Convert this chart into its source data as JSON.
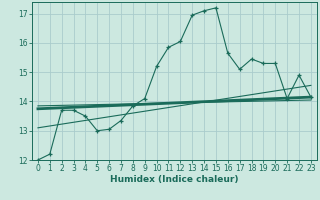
{
  "xlabel": "Humidex (Indice chaleur)",
  "background_color": "#cce8e0",
  "grid_color": "#aacccc",
  "line_color": "#1a6b5a",
  "xlim": [
    -0.5,
    23.5
  ],
  "ylim": [
    12,
    17.4
  ],
  "yticks": [
    12,
    13,
    14,
    15,
    16,
    17
  ],
  "xticks": [
    0,
    1,
    2,
    3,
    4,
    5,
    6,
    7,
    8,
    9,
    10,
    11,
    12,
    13,
    14,
    15,
    16,
    17,
    18,
    19,
    20,
    21,
    22,
    23
  ],
  "series1_x": [
    0,
    1,
    2,
    3,
    4,
    5,
    6,
    7,
    8,
    9,
    10,
    11,
    12,
    13,
    14,
    15,
    16,
    17,
    18,
    19,
    20,
    21,
    22,
    23
  ],
  "series1_y": [
    12.0,
    12.2,
    13.7,
    13.7,
    13.5,
    13.0,
    13.05,
    13.35,
    13.85,
    14.1,
    15.2,
    15.85,
    16.05,
    16.95,
    17.1,
    17.2,
    15.65,
    15.1,
    15.45,
    15.3,
    15.3,
    14.1,
    14.9,
    14.15
  ],
  "series2_x": [
    0,
    23
  ],
  "series2_y": [
    13.1,
    14.55
  ],
  "series3_x": [
    0,
    23
  ],
  "series3_y": [
    13.75,
    14.15
  ],
  "series3_lw": 2.0,
  "series4_x": [
    0,
    23
  ],
  "series4_y": [
    13.85,
    14.05
  ]
}
